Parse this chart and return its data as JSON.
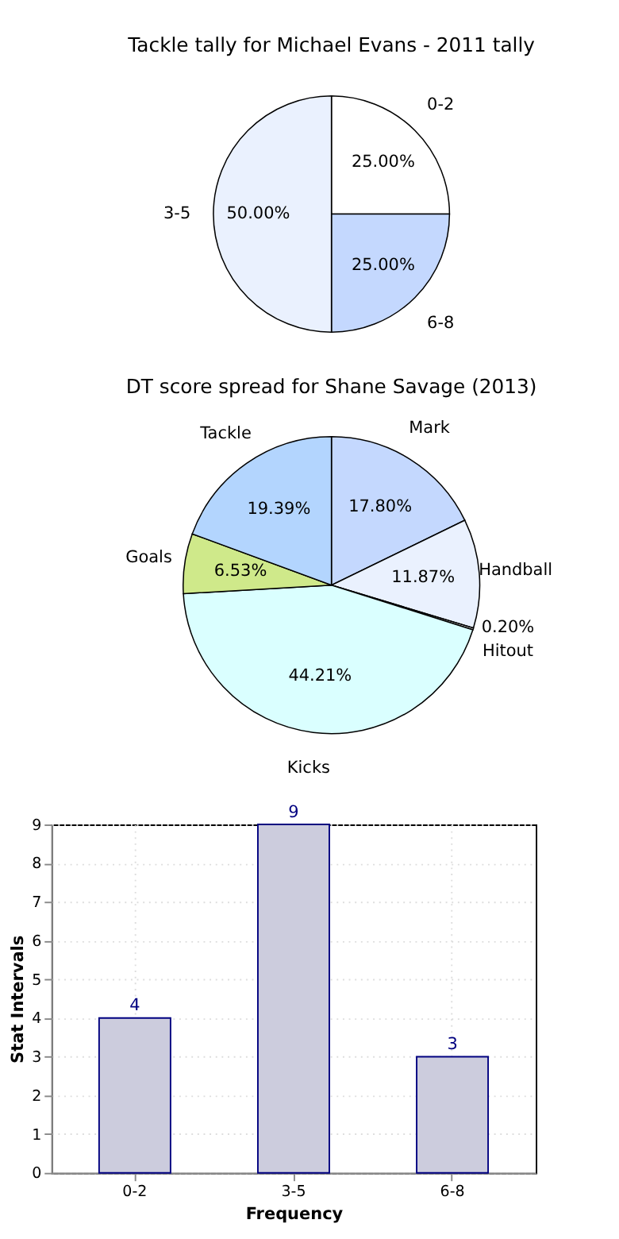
{
  "chart_data": [
    {
      "type": "pie",
      "title": "Tackle tally for Michael Evans - 2011 tally",
      "categories": [
        "0-2",
        "6-8",
        "3-5"
      ],
      "values": [
        25,
        25,
        50
      ],
      "colors": [
        "#ffffff",
        "#c4d8fe",
        "#eaf1fe"
      ],
      "value_labels": [
        "25.00%",
        "25.00%",
        "50.00%"
      ]
    },
    {
      "type": "pie",
      "title": "DT score spread for Shane Savage (2013)",
      "categories": [
        "Mark",
        "Handball",
        "Hitout",
        "Kicks",
        "Goals",
        "Tackle"
      ],
      "values": [
        17.8,
        11.87,
        0.2,
        44.21,
        6.53,
        19.39
      ],
      "colors": [
        "#c4d8fe",
        "#eaf1fe",
        "#ffffff",
        "#daffff",
        "#cfe98a",
        "#b3d5fe"
      ],
      "value_labels": [
        "17.80%",
        "11.87%",
        "0.20%",
        "44.21%",
        "6.53%",
        "19.39%"
      ]
    },
    {
      "type": "bar",
      "categories": [
        "0-2",
        "3-5",
        "6-8"
      ],
      "values": [
        4,
        9,
        3
      ],
      "color": "#ccccdd",
      "xlabel": "Frequency",
      "ylabel": "Stat Intervals",
      "ylim": [
        0,
        9
      ],
      "yticks": [
        0,
        1,
        2,
        3,
        4,
        5,
        6,
        7,
        8,
        9
      ],
      "grid": true,
      "data_labels": true
    }
  ]
}
